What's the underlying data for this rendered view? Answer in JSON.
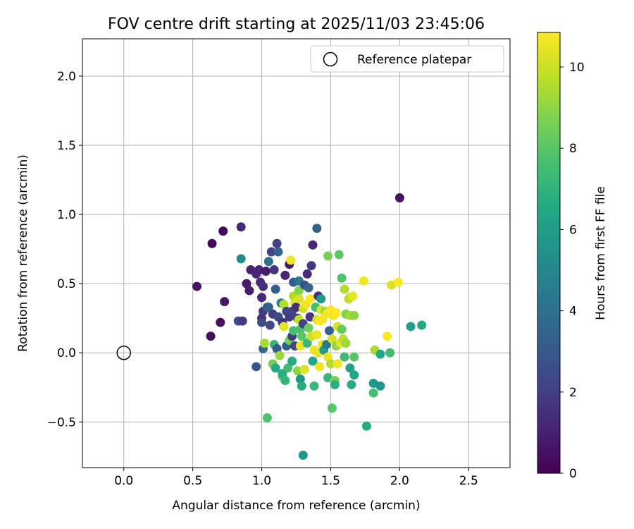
{
  "chart_data": {
    "type": "scatter",
    "title": "FOV centre drift starting at 2025/11/03 23:45:06",
    "xlabel": "Angular distance from reference (arcmin)",
    "ylabel": "Rotation from reference (arcmin)",
    "xlim": [
      -0.3,
      2.8
    ],
    "ylim": [
      -0.83,
      2.27
    ],
    "xticks": [
      0.0,
      0.5,
      1.0,
      1.5,
      2.0,
      2.5
    ],
    "xtick_labels": [
      "0.0",
      "0.5",
      "1.0",
      "1.5",
      "2.0",
      "2.5"
    ],
    "yticks": [
      -0.5,
      0.0,
      0.5,
      1.0,
      1.5,
      2.0
    ],
    "ytick_labels": [
      "−0.5",
      "0.0",
      "0.5",
      "1.0",
      "1.5",
      "2.0"
    ],
    "grid": true,
    "legend": {
      "position": "top-right",
      "entries": [
        "Reference platepar"
      ]
    },
    "reference_point": {
      "name": "Reference platepar",
      "x": 0.0,
      "y": 0.0,
      "marker": "open-circle"
    },
    "colorbar": {
      "label": "Hours from first FF file",
      "range": [
        0,
        10.85
      ],
      "ticks": [
        0,
        2,
        4,
        6,
        8,
        10
      ],
      "tick_labels": [
        "0",
        "2",
        "4",
        "6",
        "8",
        "10"
      ],
      "colormap": "viridis"
    },
    "series": [
      {
        "name": "FOV centre positions",
        "points": [
          [
            0.53,
            0.48,
            0.6
          ],
          [
            0.63,
            0.12,
            0.4
          ],
          [
            0.64,
            0.79,
            0.3
          ],
          [
            0.7,
            0.22,
            0.5
          ],
          [
            0.72,
            0.88,
            0.2
          ],
          [
            0.73,
            0.37,
            0.7
          ],
          [
            0.83,
            0.23,
            2.6
          ],
          [
            0.85,
            0.91,
            1.3
          ],
          [
            0.85,
            0.68,
            5.2
          ],
          [
            0.86,
            0.23,
            1.8
          ],
          [
            0.89,
            0.5,
            0.8
          ],
          [
            0.91,
            0.45,
            0.9
          ],
          [
            0.92,
            0.6,
            1.0
          ],
          [
            0.96,
            0.57,
            1.2
          ],
          [
            0.96,
            -0.1,
            2.8
          ],
          [
            0.98,
            0.6,
            1.1
          ],
          [
            0.99,
            0.51,
            1.3
          ],
          [
            1.0,
            0.4,
            1.2
          ],
          [
            1.0,
            0.25,
            1.4
          ],
          [
            1.0,
            0.22,
            2.5
          ],
          [
            1.01,
            0.3,
            1.9
          ],
          [
            1.01,
            0.48,
            1.5
          ],
          [
            1.01,
            0.03,
            3.5
          ],
          [
            1.02,
            0.07,
            9.4
          ],
          [
            1.03,
            0.59,
            0.8
          ],
          [
            1.04,
            -0.47,
            7.8
          ],
          [
            1.04,
            0.33,
            3.0
          ],
          [
            1.05,
            0.66,
            4.0
          ],
          [
            1.05,
            0.33,
            3.4
          ],
          [
            1.06,
            0.2,
            2.4
          ],
          [
            1.07,
            0.73,
            2.2
          ],
          [
            1.08,
            -0.08,
            8.6
          ],
          [
            1.08,
            0.28,
            2.0
          ],
          [
            1.09,
            0.6,
            1.6
          ],
          [
            1.09,
            0.06,
            7.2
          ],
          [
            1.1,
            0.46,
            3.2
          ],
          [
            1.1,
            -0.11,
            6.6
          ],
          [
            1.11,
            0.79,
            2.0
          ],
          [
            1.11,
            0.03,
            3.0
          ],
          [
            1.12,
            0.26,
            2.4
          ],
          [
            1.12,
            0.73,
            3.5
          ],
          [
            1.13,
            -0.02,
            9.2
          ],
          [
            1.14,
            0.36,
            4.8
          ],
          [
            1.15,
            0.22,
            1.6
          ],
          [
            1.15,
            -0.17,
            7.9
          ],
          [
            1.15,
            -0.15,
            6.8
          ],
          [
            1.16,
            0.19,
            10.4
          ],
          [
            1.16,
            0.35,
            9.6
          ],
          [
            1.17,
            0.56,
            1.1
          ],
          [
            1.17,
            -0.2,
            7.1
          ],
          [
            1.18,
            0.3,
            2.4
          ],
          [
            1.18,
            0.05,
            3.2
          ],
          [
            1.19,
            -0.11,
            7.4
          ],
          [
            1.2,
            0.09,
            8.6
          ],
          [
            1.2,
            0.26,
            1.9
          ],
          [
            1.2,
            0.64,
            0.8
          ],
          [
            1.21,
            0.67,
            10.6
          ],
          [
            1.22,
            0.12,
            1.9
          ],
          [
            1.22,
            0.3,
            2.2
          ],
          [
            1.22,
            -0.06,
            6.6
          ],
          [
            1.23,
            0.51,
            3.0
          ],
          [
            1.23,
            0.16,
            7.6
          ],
          [
            1.23,
            0.41,
            9.6
          ],
          [
            1.24,
            0.36,
            10.3
          ],
          [
            1.24,
            0.05,
            2.3
          ],
          [
            1.25,
            0.33,
            1.4
          ],
          [
            1.26,
            -0.13,
            9.0
          ],
          [
            1.26,
            0.25,
            2.1
          ],
          [
            1.27,
            0.52,
            4.4
          ],
          [
            1.27,
            0.45,
            8.8
          ],
          [
            1.27,
            0.24,
            9.9
          ],
          [
            1.27,
            0.39,
            10.2
          ],
          [
            1.28,
            0.17,
            7.8
          ],
          [
            1.28,
            -0.19,
            5.7
          ],
          [
            1.28,
            0.05,
            10.6
          ],
          [
            1.29,
            0.12,
            8.0
          ],
          [
            1.29,
            -0.24,
            6.6
          ],
          [
            1.3,
            0.32,
            10.0
          ],
          [
            1.3,
            -0.74,
            5.8
          ],
          [
            1.3,
            0.21,
            2.2
          ],
          [
            1.31,
            0.49,
            2.8
          ],
          [
            1.31,
            -0.12,
            10.3
          ],
          [
            1.32,
            0.35,
            10.6
          ],
          [
            1.33,
            0.57,
            1.4
          ],
          [
            1.33,
            0.07,
            7.2
          ],
          [
            1.34,
            0.47,
            3.5
          ],
          [
            1.34,
            0.18,
            8.4
          ],
          [
            1.35,
            0.26,
            1.7
          ],
          [
            1.35,
            0.39,
            10.8
          ],
          [
            1.36,
            0.63,
            1.8
          ],
          [
            1.36,
            0.12,
            10.0
          ],
          [
            1.37,
            0.78,
            1.2
          ],
          [
            1.37,
            -0.06,
            6.4
          ],
          [
            1.38,
            -0.24,
            7.2
          ],
          [
            1.38,
            0.02,
            10.6
          ],
          [
            1.39,
            0.33,
            7.6
          ],
          [
            1.4,
            0.9,
            3.2
          ],
          [
            1.4,
            0.24,
            10.2
          ],
          [
            1.4,
            0.13,
            10.6
          ],
          [
            1.41,
            0.41,
            1.5
          ],
          [
            1.41,
            0.0,
            10.4
          ],
          [
            1.42,
            -0.1,
            10.6
          ],
          [
            1.42,
            0.23,
            10.8
          ],
          [
            1.43,
            0.39,
            5.8
          ],
          [
            1.43,
            0.31,
            10.3
          ],
          [
            1.44,
            0.06,
            10.5
          ],
          [
            1.44,
            0.24,
            10.7
          ],
          [
            1.45,
            0.02,
            6.0
          ],
          [
            1.46,
            0.3,
            9.2
          ],
          [
            1.47,
            0.06,
            4.4
          ],
          [
            1.47,
            0.28,
            10.7
          ],
          [
            1.48,
            0.7,
            8.6
          ],
          [
            1.48,
            -0.18,
            7.2
          ],
          [
            1.48,
            -0.03,
            10.6
          ],
          [
            1.49,
            0.16,
            3.3
          ],
          [
            1.5,
            0.31,
            10.9
          ],
          [
            1.5,
            -0.08,
            9.6
          ],
          [
            1.51,
            -0.4,
            8.0
          ],
          [
            1.51,
            0.1,
            10.2
          ],
          [
            1.52,
            0.27,
            10.6
          ],
          [
            1.53,
            -0.2,
            8.6
          ],
          [
            1.53,
            -0.23,
            6.8
          ],
          [
            1.54,
            0.29,
            10.8
          ],
          [
            1.54,
            0.05,
            9.0
          ],
          [
            1.55,
            -0.08,
            10.6
          ],
          [
            1.55,
            0.19,
            10.2
          ],
          [
            1.56,
            0.71,
            8.1
          ],
          [
            1.57,
            0.07,
            10.4
          ],
          [
            1.58,
            0.17,
            8.3
          ],
          [
            1.58,
            0.54,
            7.8
          ],
          [
            1.59,
            0.1,
            9.8
          ],
          [
            1.6,
            -0.03,
            7.4
          ],
          [
            1.6,
            0.46,
            9.6
          ],
          [
            1.61,
            0.07,
            9.2
          ],
          [
            1.61,
            0.28,
            8.7
          ],
          [
            1.63,
            0.39,
            9.8
          ],
          [
            1.64,
            0.4,
            9.7
          ],
          [
            1.64,
            0.27,
            9.4
          ],
          [
            1.64,
            -0.11,
            6.2
          ],
          [
            1.65,
            -0.23,
            6.7
          ],
          [
            1.66,
            0.41,
            10.4
          ],
          [
            1.67,
            0.27,
            9.0
          ],
          [
            1.67,
            -0.16,
            6.4
          ],
          [
            1.67,
            -0.03,
            8.0
          ],
          [
            1.74,
            0.52,
            10.6
          ],
          [
            1.76,
            -0.53,
            6.6
          ],
          [
            1.81,
            -0.22,
            5.8
          ],
          [
            1.81,
            -0.29,
            7.6
          ],
          [
            1.82,
            0.02,
            9.4
          ],
          [
            1.86,
            -0.24,
            5.6
          ],
          [
            1.86,
            -0.01,
            6.5
          ],
          [
            1.91,
            0.12,
            10.8
          ],
          [
            1.93,
            0.0,
            7.4
          ],
          [
            1.94,
            0.49,
            10.2
          ],
          [
            1.99,
            0.51,
            10.9
          ],
          [
            2.0,
            1.12,
            0.5
          ],
          [
            2.08,
            0.19,
            6.1
          ],
          [
            2.16,
            0.2,
            6.5
          ]
        ]
      }
    ]
  }
}
